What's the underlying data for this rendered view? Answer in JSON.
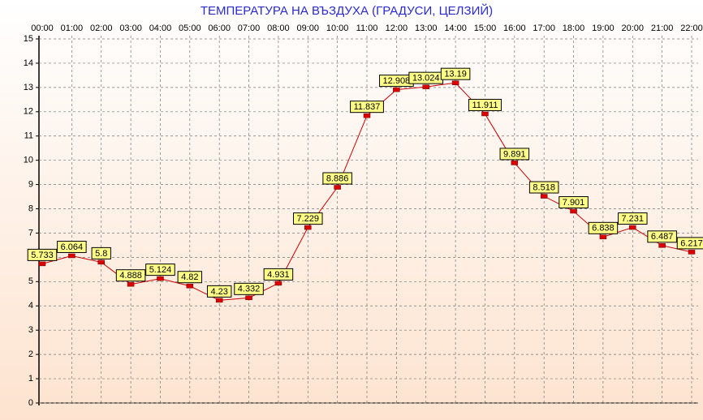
{
  "chart_data": {
    "type": "line",
    "title": "ТЕМПЕРАТУРА НА ВЪЗДУХА  (ГРАДУСИ, ЦЕЛЗИЙ)",
    "categories": [
      "00:00",
      "01:00",
      "02:00",
      "03:00",
      "04:00",
      "05:00",
      "06:00",
      "07:00",
      "08:00",
      "09:00",
      "10:00",
      "11:00",
      "12:00",
      "13:00",
      "14:00",
      "15:00",
      "16:00",
      "17:00",
      "18:00",
      "19:00",
      "20:00",
      "21:00",
      "22:00"
    ],
    "values": [
      5.733,
      6.064,
      5.8,
      4.888,
      5.124,
      4.82,
      4.23,
      4.332,
      4.931,
      7.229,
      8.886,
      11.837,
      12.908,
      13.024,
      13.19,
      11.911,
      9.891,
      8.518,
      7.901,
      6.838,
      7.231,
      6.487,
      6.217
    ],
    "color": "#cc0000",
    "marker_color": "#dd0000",
    "label_background": "#ffff88",
    "ylim": [
      0,
      15
    ],
    "yticks": [
      0,
      1,
      2,
      3,
      4,
      5,
      6,
      7,
      8,
      9,
      10,
      11,
      12,
      13,
      14,
      15
    ],
    "grid": true
  }
}
